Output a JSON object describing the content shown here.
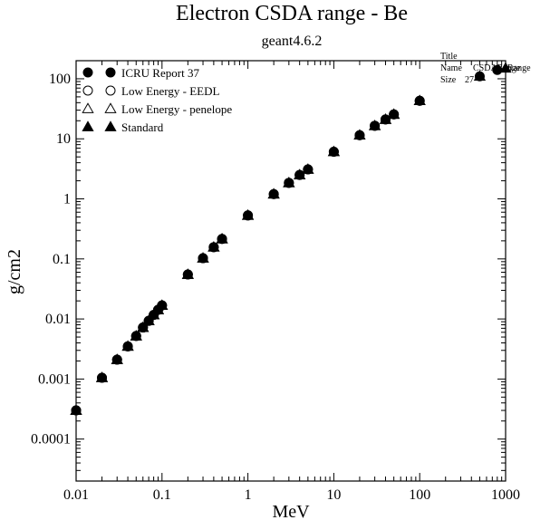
{
  "chart_data": {
    "type": "scatter",
    "title": "Electron CSDA range - Be",
    "subtitle": "geant4.6.2",
    "xlabel": "MeV",
    "ylabel": "g/cm2",
    "xscale": "log",
    "yscale": "log",
    "xlim": [
      0.01,
      1000
    ],
    "ylim": [
      2e-05,
      200
    ],
    "x_ticks": [
      "0.01",
      "0.1",
      "1",
      "10",
      "100",
      "1000"
    ],
    "y_ticks": [
      "0.0001",
      "0.001",
      "0.01",
      "0.1",
      "1",
      "10",
      "100"
    ],
    "grid": false,
    "legend_position": "top-left",
    "series": [
      {
        "name": "ICRU Report 37",
        "marker": "filled-circle",
        "x": [
          0.01,
          0.02,
          0.03,
          0.04,
          0.05,
          0.06,
          0.07,
          0.08,
          0.09,
          0.1,
          0.2,
          0.3,
          0.4,
          0.5,
          1,
          2,
          3,
          4,
          5,
          10,
          20,
          30,
          40,
          50,
          100,
          500,
          800
        ],
        "y": [
          0.0003,
          0.00105,
          0.0021,
          0.0035,
          0.0052,
          0.0072,
          0.0093,
          0.0117,
          0.0142,
          0.0168,
          0.055,
          0.103,
          0.157,
          0.215,
          0.53,
          1.2,
          1.85,
          2.5,
          3.1,
          6.1,
          11.5,
          16.5,
          21,
          25.5,
          43,
          110,
          140
        ]
      },
      {
        "name": "Low Energy - EEDL",
        "marker": "open-circle",
        "x": [
          0.01,
          0.02,
          0.03,
          0.04,
          0.05,
          0.06,
          0.07,
          0.08,
          0.09,
          0.1,
          0.2,
          0.3,
          0.4,
          0.5,
          1,
          2,
          3,
          4,
          5,
          10,
          20,
          30,
          40,
          50,
          100
        ],
        "y": [
          0.0003,
          0.00105,
          0.0021,
          0.0035,
          0.0052,
          0.0072,
          0.0093,
          0.0117,
          0.0142,
          0.0168,
          0.055,
          0.103,
          0.157,
          0.215,
          0.53,
          1.2,
          1.85,
          2.5,
          3.1,
          6.1,
          11.5,
          16.5,
          21,
          25.5,
          43
        ]
      },
      {
        "name": "Low Energy - penelope",
        "marker": "open-triangle",
        "x": [
          0.01,
          0.02,
          0.03,
          0.04,
          0.05,
          0.06,
          0.07,
          0.08,
          0.09,
          0.1,
          0.2,
          0.3,
          0.4,
          0.5,
          1,
          2,
          3,
          4,
          5,
          10,
          20,
          30,
          40,
          50,
          100
        ],
        "y": [
          0.0003,
          0.00105,
          0.0021,
          0.0035,
          0.0052,
          0.0072,
          0.0093,
          0.0117,
          0.0142,
          0.0168,
          0.055,
          0.103,
          0.157,
          0.215,
          0.53,
          1.2,
          1.85,
          2.5,
          3.1,
          6.1,
          11.5,
          16.5,
          21,
          25.5,
          43
        ]
      },
      {
        "name": "Standard",
        "marker": "filled-triangle",
        "x": [
          0.01,
          0.02,
          0.03,
          0.04,
          0.05,
          0.06,
          0.07,
          0.08,
          0.09,
          0.1,
          0.2,
          0.3,
          0.4,
          0.5,
          1,
          2,
          3,
          4,
          5,
          10,
          20,
          30,
          40,
          50,
          100,
          500,
          1000
        ],
        "y": [
          0.0003,
          0.00105,
          0.0021,
          0.0035,
          0.0052,
          0.0072,
          0.0093,
          0.0117,
          0.0142,
          0.0168,
          0.055,
          0.103,
          0.157,
          0.215,
          0.53,
          1.2,
          1.85,
          2.5,
          3.1,
          6.1,
          11.5,
          16.5,
          21,
          25.5,
          43,
          110,
          150
        ]
      }
    ],
    "corner_note": {
      "line1": "Title",
      "line2_label": "Name",
      "line2_value": "CSDARange",
      "line3_label": "Size",
      "line3_value": "27",
      "overlap_text": "Range"
    }
  }
}
